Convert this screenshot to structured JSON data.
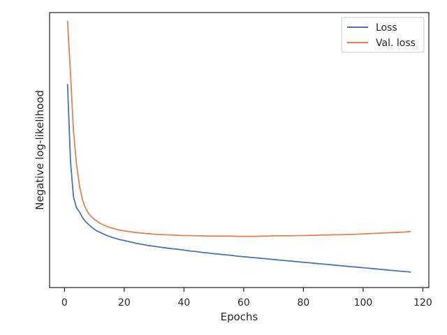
{
  "chart_data": {
    "type": "line",
    "title": "",
    "xlabel": "Epochs",
    "ylabel": "Negative log-likelihood",
    "xlim": [
      -5,
      122
    ],
    "ylim": [
      0,
      1
    ],
    "xticks": [
      0,
      20,
      40,
      60,
      80,
      100,
      120
    ],
    "y_tick_labels_shown": false,
    "grid": false,
    "legend_position": "top-right",
    "series": [
      {
        "name": "Loss",
        "color": "#4c72b0",
        "x": [
          1,
          2,
          3,
          4,
          5,
          6,
          7,
          8,
          9,
          10,
          11,
          12,
          13,
          14,
          15,
          16,
          17,
          18,
          19,
          20,
          22,
          24,
          26,
          28,
          30,
          32,
          34,
          36,
          38,
          40,
          42,
          44,
          46,
          48,
          50,
          52,
          54,
          56,
          58,
          60,
          62,
          64,
          66,
          68,
          70,
          72,
          74,
          76,
          78,
          80,
          82,
          84,
          86,
          88,
          90,
          92,
          94,
          96,
          98,
          100,
          102,
          104,
          106,
          108,
          110,
          112,
          114,
          116
        ],
        "y": [
          0.74,
          0.46,
          0.33,
          0.29,
          0.275,
          0.255,
          0.24,
          0.23,
          0.22,
          0.212,
          0.205,
          0.2,
          0.195,
          0.19,
          0.186,
          0.182,
          0.179,
          0.176,
          0.173,
          0.171,
          0.166,
          0.161,
          0.157,
          0.153,
          0.15,
          0.147,
          0.144,
          0.141,
          0.139,
          0.136,
          0.133,
          0.131,
          0.128,
          0.126,
          0.123,
          0.121,
          0.119,
          0.117,
          0.114,
          0.112,
          0.11,
          0.108,
          0.106,
          0.104,
          0.102,
          0.1,
          0.098,
          0.096,
          0.094,
          0.092,
          0.09,
          0.088,
          0.086,
          0.084,
          0.082,
          0.08,
          0.078,
          0.076,
          0.074,
          0.072,
          0.07,
          0.068,
          0.066,
          0.064,
          0.062,
          0.06,
          0.058,
          0.056
        ]
      },
      {
        "name": "Val. loss",
        "color": "#dd8452",
        "x": [
          1,
          2,
          3,
          4,
          5,
          6,
          7,
          8,
          9,
          10,
          11,
          12,
          13,
          14,
          15,
          16,
          17,
          18,
          19,
          20,
          22,
          24,
          26,
          28,
          30,
          32,
          34,
          36,
          38,
          40,
          42,
          44,
          46,
          48,
          50,
          52,
          54,
          56,
          58,
          60,
          62,
          64,
          66,
          68,
          70,
          72,
          74,
          76,
          78,
          80,
          82,
          84,
          86,
          88,
          90,
          92,
          94,
          96,
          98,
          100,
          102,
          104,
          106,
          108,
          110,
          112,
          114,
          116
        ],
        "y": [
          0.97,
          0.78,
          0.57,
          0.45,
          0.37,
          0.32,
          0.29,
          0.27,
          0.258,
          0.248,
          0.24,
          0.233,
          0.228,
          0.223,
          0.219,
          0.216,
          0.213,
          0.21,
          0.208,
          0.206,
          0.203,
          0.2,
          0.198,
          0.196,
          0.194,
          0.193,
          0.192,
          0.191,
          0.19,
          0.189,
          0.189,
          0.188,
          0.188,
          0.187,
          0.187,
          0.187,
          0.187,
          0.187,
          0.186,
          0.186,
          0.186,
          0.186,
          0.187,
          0.187,
          0.188,
          0.188,
          0.188,
          0.188,
          0.189,
          0.189,
          0.19,
          0.19,
          0.191,
          0.191,
          0.192,
          0.192,
          0.193,
          0.193,
          0.194,
          0.195,
          0.196,
          0.197,
          0.198,
          0.199,
          0.2,
          0.201,
          0.202,
          0.204
        ]
      }
    ]
  }
}
